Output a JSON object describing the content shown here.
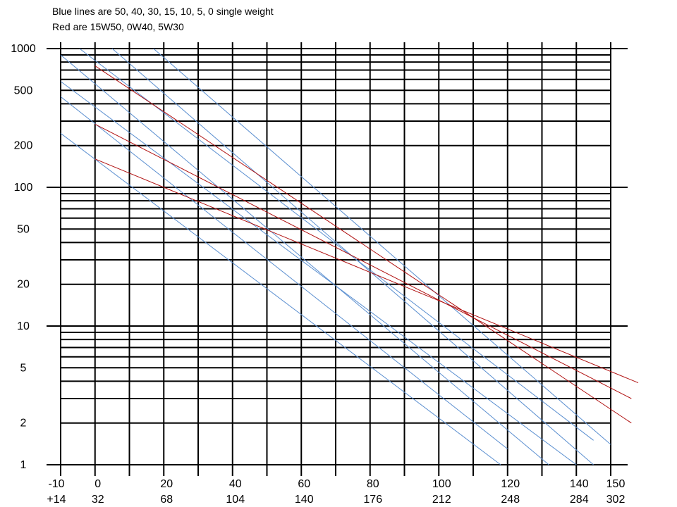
{
  "chart_data": {
    "type": "line",
    "annotations": [
      "Blue lines are 50, 40, 30, 15, 10, 5, 0 single weight",
      "Red are 15W50, 0W40, 5W30"
    ],
    "x_axis": {
      "range": [
        -10,
        150
      ],
      "ticks": [
        -10,
        0,
        20,
        40,
        60,
        80,
        100,
        120,
        140,
        150
      ],
      "tick_labels": [
        "-10",
        "0",
        "20",
        "40",
        "60",
        "80",
        "100",
        "120",
        "140",
        "150"
      ],
      "secondary_tick_labels": [
        "+14",
        "32",
        "68",
        "104",
        "140",
        "176",
        "212",
        "248",
        "284",
        "302"
      ],
      "vertical_gridlines": [
        -10,
        0,
        10,
        20,
        30,
        40,
        50,
        60,
        70,
        80,
        90,
        100,
        110,
        120,
        130,
        140,
        150
      ]
    },
    "y_axis": {
      "scale": "log",
      "range": [
        1,
        1000
      ],
      "ticks": [
        1,
        2,
        5,
        10,
        20,
        50,
        100,
        200,
        500,
        1000
      ],
      "tick_labels": [
        "1",
        "2",
        "5",
        "10",
        "20",
        "50",
        "100",
        "200",
        "500",
        "1000"
      ],
      "horizontal_gridlines": [
        2,
        3,
        4,
        5,
        6,
        7,
        8,
        9,
        20,
        30,
        40,
        50,
        60,
        70,
        80,
        90,
        200,
        300,
        400,
        500,
        600,
        700,
        800,
        900
      ],
      "major_gridlines": [
        1,
        10,
        100,
        1000
      ]
    },
    "grid": true,
    "colors": {
      "blue": "#5b8fd0",
      "red": "#b01010",
      "grid": "#000000"
    },
    "series": [
      {
        "color": "blue",
        "points": [
          [
            17,
            1000
          ],
          [
            150,
            1.4
          ]
        ]
      },
      {
        "color": "blue",
        "points": [
          [
            5,
            1000
          ],
          [
            145,
            1.0
          ]
        ]
      },
      {
        "color": "blue",
        "points": [
          [
            -4.5,
            1000
          ],
          [
            145,
            1.5
          ]
        ]
      },
      {
        "color": "blue",
        "points": [
          [
            -10,
            900
          ],
          [
            132,
            1.0
          ]
        ]
      },
      {
        "color": "blue",
        "points": [
          [
            -10,
            580
          ],
          [
            140,
            1.0
          ]
        ]
      },
      {
        "color": "blue",
        "points": [
          [
            -10,
            450
          ],
          [
            120,
            1.3
          ]
        ]
      },
      {
        "color": "blue",
        "points": [
          [
            -10,
            245
          ],
          [
            118,
            1.0
          ]
        ]
      },
      {
        "color": "red",
        "points": [
          [
            0,
            750
          ],
          [
            156,
            2.0
          ]
        ]
      },
      {
        "color": "red",
        "points": [
          [
            0,
            285
          ],
          [
            156,
            3.0
          ]
        ]
      },
      {
        "color": "red",
        "points": [
          [
            0,
            160
          ],
          [
            158,
            3.9
          ]
        ]
      }
    ]
  }
}
